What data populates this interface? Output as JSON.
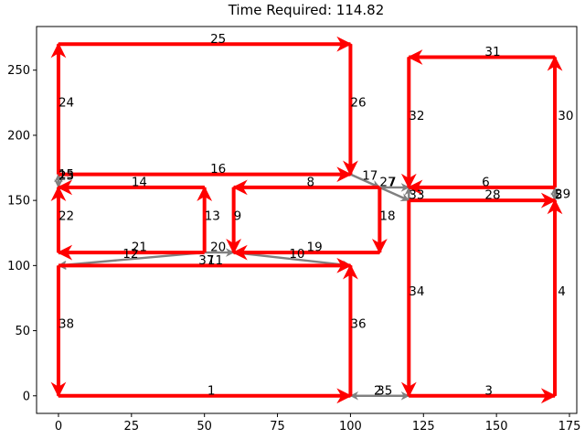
{
  "chart_data": {
    "type": "scatter",
    "title": "Time Required: 114.82",
    "xlabel": "",
    "ylabel": "",
    "xlim": [
      -7.5,
      177.5
    ],
    "ylim": [
      -13.5,
      283.5
    ],
    "xticks": [
      "0",
      "25",
      "50",
      "75",
      "100",
      "125",
      "150",
      "175"
    ],
    "yticks": [
      "0",
      "50",
      "100",
      "150",
      "200",
      "250"
    ],
    "grid": false,
    "colors": {
      "red": "#ff0000",
      "gray": "#808080"
    },
    "edges": [
      {
        "label": "1",
        "from": [
          0,
          0
        ],
        "to": [
          100,
          0
        ],
        "color": "red",
        "lx": 51,
        "ly": 1
      },
      {
        "label": "3",
        "from": [
          120,
          0
        ],
        "to": [
          170,
          0
        ],
        "color": "red",
        "lx": 146,
        "ly": 1
      },
      {
        "label": "4",
        "from": [
          170,
          0
        ],
        "to": [
          170,
          150
        ],
        "color": "red",
        "lx": 171,
        "ly": 77
      },
      {
        "label": "38",
        "from": [
          0,
          100
        ],
        "to": [
          0,
          0
        ],
        "color": "red",
        "lx": 0,
        "ly": 52
      },
      {
        "label": "36",
        "from": [
          100,
          0
        ],
        "to": [
          100,
          100
        ],
        "color": "red",
        "lx": 100,
        "ly": 52
      },
      {
        "label": "34",
        "from": [
          120,
          150
        ],
        "to": [
          120,
          0
        ],
        "color": "red",
        "lx": 120,
        "ly": 77
      },
      {
        "label": "22",
        "from": [
          0,
          110
        ],
        "to": [
          0,
          160
        ],
        "color": "red",
        "lx": 0,
        "ly": 135
      },
      {
        "label": "24",
        "from": [
          0,
          170
        ],
        "to": [
          0,
          270
        ],
        "color": "red",
        "lx": 0,
        "ly": 222
      },
      {
        "label": "25",
        "from": [
          0,
          270
        ],
        "to": [
          100,
          270
        ],
        "color": "red",
        "lx": 52,
        "ly": 271
      },
      {
        "label": "26",
        "from": [
          100,
          270
        ],
        "to": [
          100,
          170
        ],
        "color": "red",
        "lx": 100,
        "ly": 222
      },
      {
        "label": "16",
        "from": [
          0,
          170
        ],
        "to": [
          100,
          170
        ],
        "color": "red",
        "lx": 52,
        "ly": 171
      },
      {
        "label": "14",
        "from": [
          50,
          160
        ],
        "to": [
          0,
          160
        ],
        "color": "red",
        "lx": 25,
        "ly": 161
      },
      {
        "label": "13",
        "from": [
          50,
          110
        ],
        "to": [
          50,
          160
        ],
        "color": "red",
        "lx": 50,
        "ly": 135
      },
      {
        "label": "21",
        "from": [
          50,
          110
        ],
        "to": [
          0,
          110
        ],
        "color": "red",
        "lx": 25,
        "ly": 111
      },
      {
        "label": "9",
        "from": [
          60,
          160
        ],
        "to": [
          60,
          110
        ],
        "color": "red",
        "lx": 60,
        "ly": 135
      },
      {
        "label": "8",
        "from": [
          110,
          160
        ],
        "to": [
          60,
          160
        ],
        "color": "red",
        "lx": 85,
        "ly": 161
      },
      {
        "label": "18",
        "from": [
          110,
          160
        ],
        "to": [
          110,
          110
        ],
        "color": "red",
        "lx": 110,
        "ly": 135
      },
      {
        "label": "19",
        "from": [
          110,
          110
        ],
        "to": [
          60,
          110
        ],
        "color": "red",
        "lx": 85,
        "ly": 111
      },
      {
        "label": "31",
        "from": [
          170,
          260
        ],
        "to": [
          120,
          260
        ],
        "color": "red",
        "lx": 146,
        "ly": 261
      },
      {
        "label": "32",
        "from": [
          120,
          260
        ],
        "to": [
          120,
          160
        ],
        "color": "red",
        "lx": 120,
        "ly": 212
      },
      {
        "label": "30",
        "from": [
          170,
          160
        ],
        "to": [
          170,
          260
        ],
        "color": "red",
        "lx": 171,
        "ly": 212
      },
      {
        "label": "6",
        "from": [
          170,
          160
        ],
        "to": [
          120,
          160
        ],
        "color": "red",
        "lx": 145,
        "ly": 161
      },
      {
        "label": "28",
        "from": [
          120,
          150
        ],
        "to": [
          170,
          150
        ],
        "color": "red",
        "lx": 146,
        "ly": 151
      },
      {
        "label": "37",
        "from": [
          0,
          100
        ],
        "to": [
          100,
          100
        ],
        "color": "red",
        "lx": 48,
        "ly": 101
      },
      {
        "label": "11",
        "from": [
          100,
          100
        ],
        "to": [
          0,
          100
        ],
        "color": "gray",
        "lx": 51,
        "ly": 101
      },
      {
        "label": "12",
        "from": [
          50,
          110
        ],
        "to": [
          0,
          100
        ],
        "color": "gray",
        "lx": 22,
        "ly": 106
      },
      {
        "label": "20",
        "from": [
          50,
          110
        ],
        "to": [
          60,
          110
        ],
        "color": "gray",
        "lx": 52,
        "ly": 111
      },
      {
        "label": "10",
        "from": [
          60,
          110
        ],
        "to": [
          100,
          100
        ],
        "color": "gray",
        "lx": 79,
        "ly": 106
      },
      {
        "label": "17",
        "from": [
          100,
          170
        ],
        "to": [
          110,
          160
        ],
        "color": "gray",
        "lx": 104,
        "ly": 166
      },
      {
        "label": "27",
        "from": [
          110,
          160
        ],
        "to": [
          120,
          160
        ],
        "color": "gray",
        "lx": 110,
        "ly": 161
      },
      {
        "label": "7",
        "from": [
          110,
          160
        ],
        "to": [
          120,
          150
        ],
        "color": "gray",
        "lx": 113,
        "ly": 161
      },
      {
        "label": "33",
        "from": [
          120,
          150
        ],
        "to": [
          120,
          160
        ],
        "color": "gray",
        "lx": 120,
        "ly": 151
      },
      {
        "label": "2",
        "from": [
          100,
          0
        ],
        "to": [
          120,
          0
        ],
        "color": "gray",
        "lx": 108,
        "ly": 1
      },
      {
        "label": "35",
        "from": [
          120,
          0
        ],
        "to": [
          100,
          0
        ],
        "color": "gray",
        "lx": 109,
        "ly": 1
      },
      {
        "label": "5",
        "from": [
          170,
          150
        ],
        "to": [
          170,
          160
        ],
        "color": "gray",
        "lx": 170,
        "ly": 151
      },
      {
        "label": "29",
        "from": [
          170,
          160
        ],
        "to": [
          170,
          150
        ],
        "color": "gray",
        "lx": 170,
        "ly": 152
      },
      {
        "label": "23",
        "from": [
          0,
          160
        ],
        "to": [
          0,
          170
        ],
        "color": "gray",
        "lx": 0,
        "ly": 166
      },
      {
        "label": "15",
        "from": [
          0,
          170
        ],
        "to": [
          0,
          160
        ],
        "color": "gray",
        "lx": 0,
        "ly": 167
      }
    ]
  }
}
